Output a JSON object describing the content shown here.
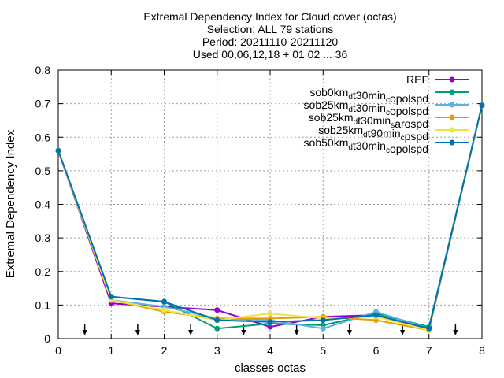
{
  "chart_data": {
    "type": "line",
    "title_lines": [
      "Extremal Dependency Index  for Cloud cover (octas)",
      "Selection: ALL     79 stations",
      "Period: 20211110-20211120",
      "Used 00,06,12,18 + 01 02 ... 36"
    ],
    "xlabel": "classes octas",
    "ylabel": "Extremal Dependency Index",
    "xlim": [
      0,
      8
    ],
    "ylim": [
      0,
      0.8
    ],
    "x_ticks": [
      "0",
      "1",
      "2",
      "3",
      "4",
      "5",
      "6",
      "7",
      "8"
    ],
    "y_ticks": [
      "0",
      "0.1",
      "0.2",
      "0.3",
      "0.4",
      "0.5",
      "0.6",
      "0.7",
      "0.8"
    ],
    "grid": true,
    "legend_position": "top-right",
    "x": [
      0,
      1,
      2,
      3,
      4,
      5,
      6,
      7,
      8
    ],
    "series": [
      {
        "name": "REF",
        "name_parts": [
          [
            "REF",
            ""
          ]
        ],
        "color": "#9400d3",
        "values": [
          0.56,
          0.105,
          0.095,
          0.085,
          0.035,
          0.065,
          0.07,
          0.025,
          0.695
        ]
      },
      {
        "name": "sob0km_dt30min_copolspd",
        "name_parts": [
          [
            "sob0km",
            ""
          ],
          [
            "d",
            "sub"
          ],
          [
            "t30min",
            ""
          ],
          [
            "c",
            "sub"
          ],
          [
            "opolspd",
            ""
          ]
        ],
        "color": "#009e73",
        "values": [
          0.56,
          0.125,
          0.11,
          0.03,
          0.045,
          0.04,
          0.075,
          0.035,
          0.695
        ]
      },
      {
        "name": "sob25km_dt30min_copolspd",
        "name_parts": [
          [
            "sob25km",
            ""
          ],
          [
            "d",
            "sub"
          ],
          [
            "t30min",
            ""
          ],
          [
            "c",
            "sub"
          ],
          [
            "opolspd",
            ""
          ]
        ],
        "color": "#56b4e9",
        "values": [
          0.56,
          0.115,
          0.095,
          0.06,
          0.055,
          0.03,
          0.08,
          0.03,
          0.695
        ]
      },
      {
        "name": "sob25km_dt30min_sarospd",
        "name_parts": [
          [
            "sob25km",
            ""
          ],
          [
            "d",
            "sub"
          ],
          [
            "t30min",
            ""
          ],
          [
            "s",
            "sub"
          ],
          [
            "arospd",
            ""
          ]
        ],
        "color": "#e69f00",
        "values": [
          0.56,
          0.115,
          0.08,
          0.06,
          0.06,
          0.065,
          0.055,
          0.025,
          0.695
        ]
      },
      {
        "name": "sob25km_dt90min_cpspd",
        "name_parts": [
          [
            "sob25km",
            ""
          ],
          [
            "d",
            "sub"
          ],
          [
            "t90min",
            ""
          ],
          [
            "c",
            "sub"
          ],
          [
            "pspd",
            ""
          ]
        ],
        "color": "#f0e442",
        "values": [
          0.56,
          0.115,
          0.085,
          0.055,
          0.075,
          0.06,
          0.065,
          0.025,
          0.695
        ]
      },
      {
        "name": "sob50km_dt30min_copolspd",
        "name_parts": [
          [
            "sob50km",
            ""
          ],
          [
            "d",
            "sub"
          ],
          [
            "t30min",
            ""
          ],
          [
            "c",
            "sub"
          ],
          [
            "opolspd",
            ""
          ]
        ],
        "color": "#0072b2",
        "values": [
          0.56,
          0.125,
          0.11,
          0.055,
          0.05,
          0.055,
          0.07,
          0.03,
          0.695
        ]
      }
    ],
    "arrows_x": [
      0.5,
      1.5,
      2.5,
      3.5,
      4.5,
      5.5,
      6.5,
      7.5
    ]
  }
}
